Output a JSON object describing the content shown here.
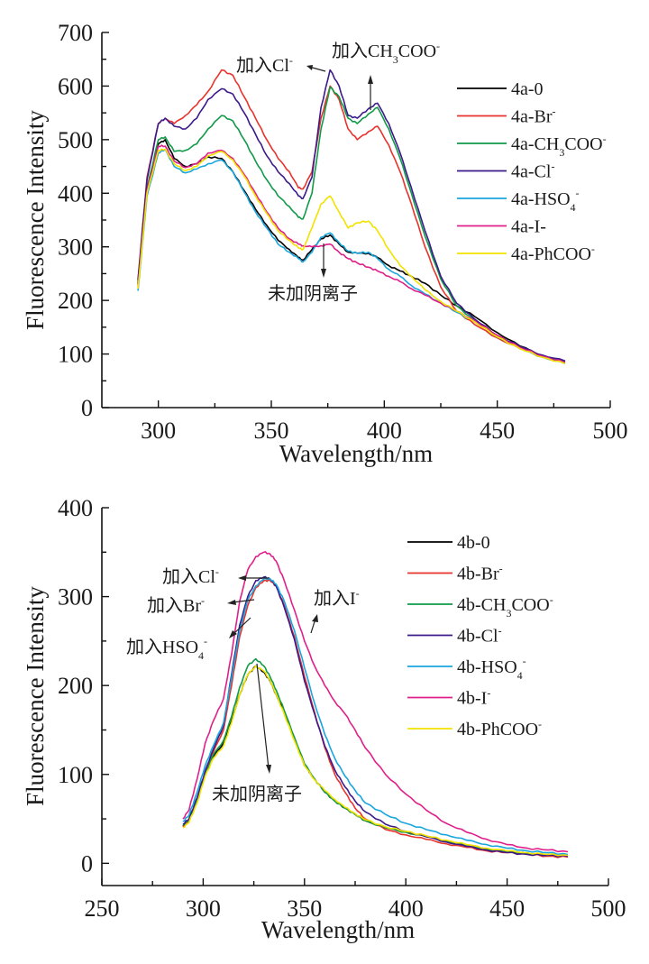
{
  "chart_data": [
    {
      "type": "line",
      "id": "chart-4a",
      "title": "",
      "xlabel": "Wavelength/nm",
      "ylabel": "Fluorescence Intensity",
      "xlim": [
        275,
        500
      ],
      "ylim": [
        0,
        700
      ],
      "xticks": [
        300,
        350,
        400,
        450,
        500
      ],
      "yticks": [
        0,
        100,
        200,
        300,
        400,
        500,
        600,
        700
      ],
      "grid": false,
      "legend_position": "top-right",
      "x": [
        291,
        295,
        300,
        303,
        307,
        312,
        317,
        322,
        328,
        333,
        338,
        343,
        348,
        353,
        358,
        362,
        364,
        368,
        372,
        376,
        380,
        384,
        388,
        393,
        397,
        402,
        407,
        412,
        418,
        425,
        432,
        440,
        450,
        460,
        470,
        480
      ],
      "series": [
        {
          "name": "4a-0",
          "label_main": "4a-0",
          "label_sub": "",
          "label_sup": "",
          "color": "#000000",
          "values": [
            230,
            400,
            492,
            500,
            465,
            450,
            455,
            468,
            465,
            440,
            405,
            370,
            340,
            312,
            295,
            280,
            275,
            295,
            315,
            322,
            305,
            290,
            288,
            288,
            280,
            265,
            255,
            245,
            232,
            210,
            190,
            170,
            140,
            115,
            97,
            85
          ]
        },
        {
          "name": "4a-Br-",
          "label_main": "4a-Br",
          "label_sub": "",
          "label_sup": "-",
          "color": "#e8332d",
          "values": [
            240,
            430,
            530,
            540,
            530,
            545,
            565,
            590,
            630,
            620,
            580,
            540,
            500,
            465,
            440,
            410,
            408,
            440,
            540,
            600,
            575,
            520,
            500,
            515,
            525,
            490,
            440,
            380,
            300,
            225,
            180,
            155,
            130,
            110,
            95,
            85
          ]
        },
        {
          "name": "4a-CH3COO-",
          "label_main": "4a-CH",
          "label_sub": "3",
          "label_sup": "-",
          "color": "#119a48",
          "values": [
            235,
            410,
            500,
            505,
            478,
            480,
            492,
            520,
            545,
            535,
            500,
            460,
            425,
            395,
            375,
            355,
            352,
            400,
            520,
            598,
            580,
            540,
            530,
            548,
            560,
            520,
            465,
            400,
            320,
            240,
            190,
            162,
            132,
            112,
            96,
            86
          ]
        },
        {
          "name": "4a-Cl-",
          "label_main": "4a-Cl",
          "label_sub": "",
          "label_sup": "-",
          "color": "#3b1a8a",
          "values": [
            238,
            425,
            530,
            540,
            525,
            520,
            540,
            575,
            595,
            585,
            550,
            510,
            470,
            440,
            418,
            395,
            390,
            430,
            560,
            630,
            600,
            545,
            540,
            558,
            568,
            530,
            475,
            410,
            330,
            245,
            195,
            165,
            135,
            114,
            98,
            87
          ]
        },
        {
          "name": "4a-HSO4-",
          "label_main": "4a-HSO",
          "label_sub": "4",
          "label_sup": "-",
          "color": "#1aa6dd",
          "values": [
            218,
            395,
            475,
            482,
            450,
            438,
            445,
            455,
            462,
            440,
            402,
            365,
            335,
            305,
            290,
            278,
            272,
            290,
            318,
            326,
            308,
            292,
            288,
            290,
            278,
            258,
            245,
            228,
            212,
            195,
            178,
            160,
            132,
            110,
            94,
            82
          ]
        },
        {
          "name": "4a-I-",
          "label_main": "4a-I-",
          "label_sub": "",
          "label_sup": "",
          "color": "#e0208a",
          "values": [
            225,
            405,
            488,
            488,
            460,
            448,
            455,
            475,
            480,
            465,
            435,
            400,
            365,
            335,
            315,
            305,
            302,
            300,
            302,
            305,
            290,
            278,
            270,
            262,
            255,
            245,
            235,
            222,
            210,
            195,
            180,
            162,
            135,
            112,
            96,
            84
          ]
        },
        {
          "name": "4a-PhCOO-",
          "label_main": "4a-PhCOO",
          "label_sub": "",
          "label_sup": "-",
          "color": "#f2e200",
          "values": [
            222,
            400,
            480,
            482,
            455,
            442,
            450,
            470,
            478,
            462,
            432,
            395,
            362,
            330,
            312,
            298,
            295,
            335,
            380,
            395,
            365,
            335,
            345,
            348,
            330,
            295,
            265,
            245,
            220,
            198,
            180,
            160,
            132,
            110,
            94,
            82
          ]
        }
      ],
      "annotations": [
        {
          "name": "add-cl",
          "text_main": "加入Cl",
          "text_sup": "-"
        },
        {
          "name": "add-ch3coo",
          "text_main": "加入CH",
          "text_sub": "3",
          "text_tail": "COO",
          "text_sup": "-"
        },
        {
          "name": "no-anion",
          "text_main": "未加阴离子"
        }
      ]
    },
    {
      "type": "line",
      "id": "chart-4b",
      "title": "",
      "xlabel": "Wavelength/nm",
      "ylabel": "Fluorescence Intensity",
      "xlim": [
        250,
        500
      ],
      "ylim": [
        -25,
        400
      ],
      "xticks": [
        250,
        300,
        350,
        400,
        450,
        500
      ],
      "yticks": [
        0,
        100,
        200,
        300,
        400
      ],
      "grid": false,
      "legend_position": "top-right",
      "x": [
        290,
        293,
        297,
        301,
        305,
        310,
        314,
        318,
        322,
        326,
        330,
        333,
        336,
        340,
        345,
        350,
        355,
        360,
        365,
        370,
        375,
        380,
        390,
        400,
        410,
        420,
        430,
        440,
        450,
        460,
        470,
        480
      ],
      "series": [
        {
          "name": "4b-0",
          "label_main": "4b-0",
          "label_sub": "",
          "label_sup": "",
          "color": "#000000",
          "values": [
            42,
            48,
            70,
            100,
            120,
            135,
            160,
            190,
            212,
            222,
            215,
            205,
            190,
            170,
            140,
            110,
            95,
            80,
            70,
            62,
            55,
            48,
            40,
            35,
            30,
            25,
            20,
            16,
            13,
            11,
            9,
            8
          ]
        },
        {
          "name": "4b-Br-",
          "label_main": "4b-Br",
          "label_sub": "",
          "label_sup": "-",
          "color": "#e8332d",
          "values": [
            41,
            48,
            72,
            102,
            125,
            150,
            200,
            255,
            290,
            310,
            318,
            318,
            312,
            290,
            255,
            210,
            170,
            130,
            100,
            80,
            62,
            50,
            38,
            32,
            27,
            22,
            18,
            14,
            12,
            10,
            8,
            7
          ]
        },
        {
          "name": "4b-CH3COO-",
          "label_main": "4b-CH",
          "label_sub": "3",
          "label_sup": "COO-",
          "color": "#119a48",
          "values": [
            43,
            49,
            71,
            100,
            122,
            138,
            165,
            198,
            222,
            230,
            222,
            210,
            195,
            172,
            142,
            112,
            95,
            80,
            70,
            62,
            55,
            48,
            40,
            35,
            30,
            25,
            20,
            16,
            13,
            11,
            10,
            9
          ]
        },
        {
          "name": "4b-Cl-",
          "label_main": "4b-Cl",
          "label_sub": "",
          "label_sup": "-",
          "color": "#3b1a8a",
          "values": [
            44,
            50,
            74,
            104,
            128,
            155,
            212,
            268,
            300,
            318,
            322,
            320,
            312,
            288,
            252,
            205,
            168,
            132,
            105,
            86,
            70,
            58,
            44,
            36,
            30,
            24,
            19,
            15,
            12,
            10,
            9,
            8
          ]
        },
        {
          "name": "4b-HSO4-",
          "label_main": "4b-HSO",
          "label_sub": "4",
          "label_sup": "-",
          "color": "#1aa6dd",
          "values": [
            47,
            54,
            80,
            110,
            132,
            158,
            208,
            262,
            296,
            312,
            320,
            320,
            314,
            295,
            262,
            220,
            180,
            145,
            118,
            98,
            82,
            68,
            55,
            45,
            38,
            32,
            26,
            21,
            17,
            14,
            12,
            10
          ]
        },
        {
          "name": "4b-I-",
          "label_main": "4b-I",
          "label_sub": "",
          "label_sup": "-",
          "color": "#e0208a",
          "values": [
            50,
            60,
            95,
            135,
            160,
            185,
            235,
            295,
            330,
            345,
            350,
            348,
            340,
            318,
            285,
            250,
            222,
            200,
            182,
            168,
            150,
            130,
            100,
            78,
            60,
            45,
            35,
            27,
            21,
            17,
            15,
            13
          ]
        },
        {
          "name": "4b-PhCOO-",
          "label_main": "4b-PhCOO",
          "label_sub": "",
          "label_sup": "-",
          "color": "#f2e200",
          "values": [
            40,
            46,
            68,
            98,
            118,
            132,
            158,
            190,
            212,
            222,
            216,
            206,
            190,
            168,
            138,
            110,
            94,
            82,
            72,
            63,
            56,
            49,
            41,
            36,
            31,
            26,
            21,
            17,
            14,
            12,
            10,
            9
          ]
        }
      ],
      "annotations": [
        {
          "name": "add-cl",
          "text_main": "加入Cl",
          "text_sup": "-"
        },
        {
          "name": "add-br",
          "text_main": "加入Br",
          "text_sup": "-"
        },
        {
          "name": "add-hso4",
          "text_main": "加入HSO",
          "text_sub": "4",
          "text_sup": "-"
        },
        {
          "name": "add-i",
          "text_main": "加入I",
          "text_sup": "-"
        },
        {
          "name": "no-anion",
          "text_main": "未加阴离子"
        }
      ]
    }
  ]
}
